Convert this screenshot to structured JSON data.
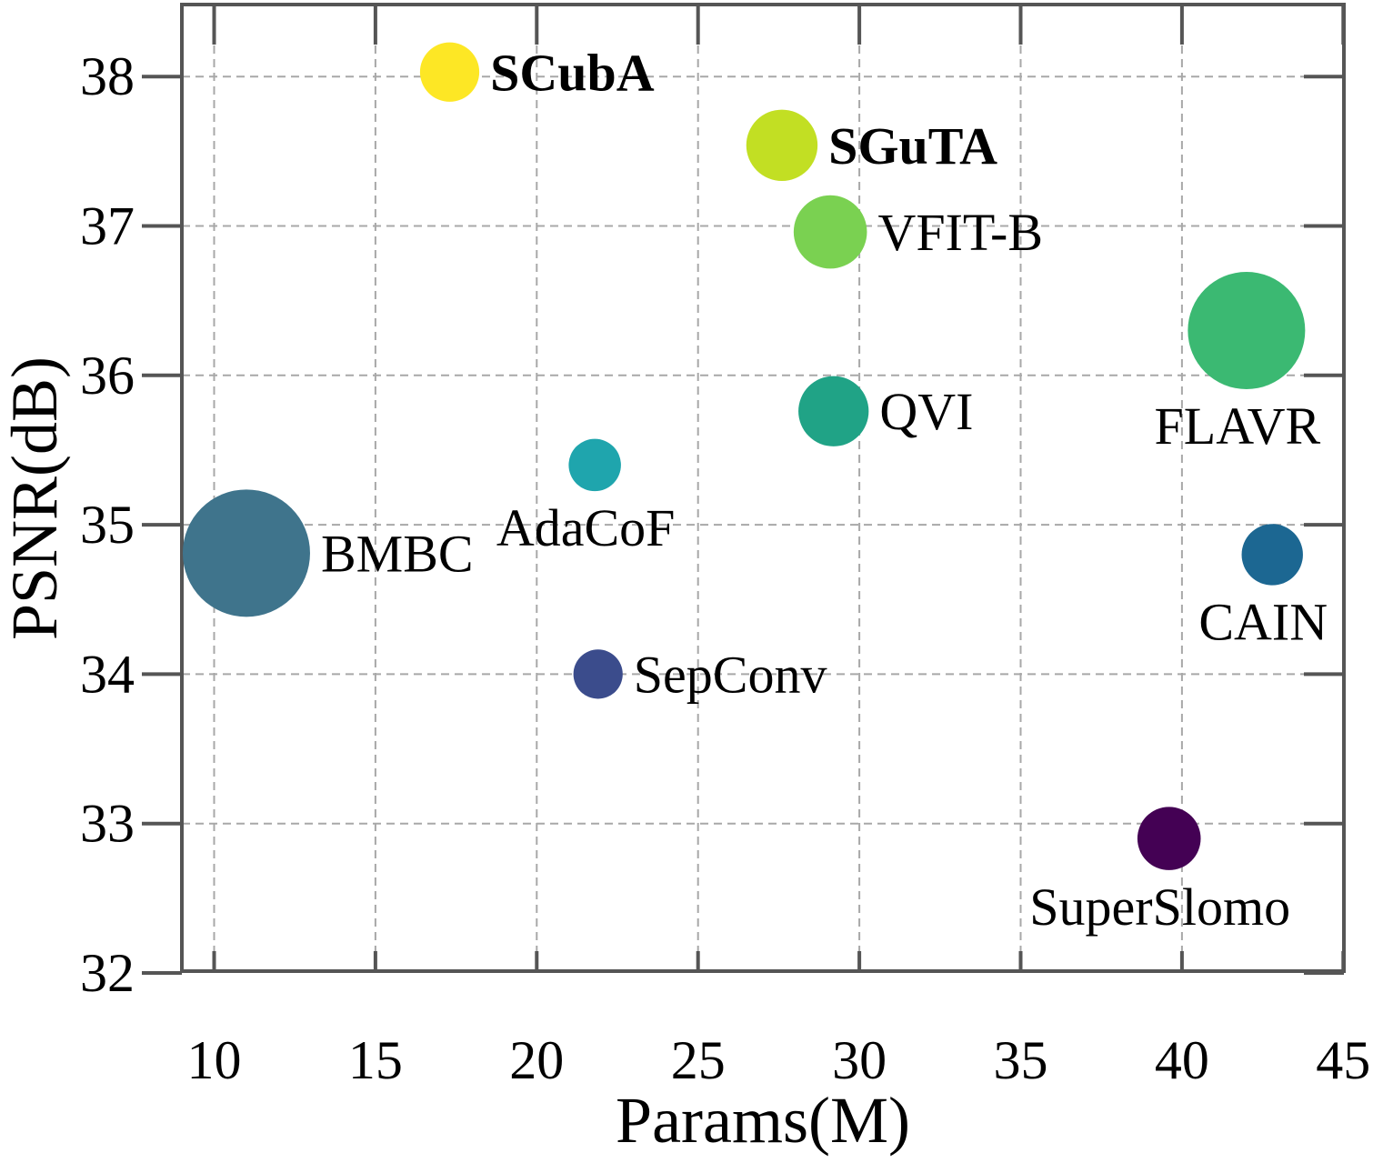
{
  "chart_data": {
    "type": "scatter",
    "title": "",
    "xlabel": "Params(M)",
    "ylabel": "PSNR(dB)",
    "xlim": [
      9,
      45
    ],
    "ylim": [
      32,
      38.5
    ],
    "xticks": [
      10,
      15,
      20,
      25,
      30,
      35,
      40,
      45
    ],
    "yticks": [
      32,
      33,
      34,
      35,
      36,
      37,
      38
    ],
    "grid": true,
    "marker_size_meaning": "relative bubble size (unlabeled)",
    "points": [
      {
        "label": "SCubA",
        "x": 17.3,
        "y": 38.03,
        "size": 0.32,
        "color": "#fde725",
        "bold": true,
        "label_position": "right"
      },
      {
        "label": "SGuTA",
        "x": 27.6,
        "y": 37.54,
        "size": 0.44,
        "color": "#c2df23",
        "bold": true,
        "label_position": "right"
      },
      {
        "label": "VFIT-B",
        "x": 29.1,
        "y": 36.96,
        "size": 0.46,
        "color": "#7ad151",
        "bold": false,
        "label_position": "right"
      },
      {
        "label": "FLAVR",
        "x": 42.0,
        "y": 36.3,
        "size": 0.9,
        "color": "#3bb972",
        "bold": false,
        "label_position": "below"
      },
      {
        "label": "QVI",
        "x": 29.2,
        "y": 35.76,
        "size": 0.43,
        "color": "#20a386",
        "bold": false,
        "label_position": "right"
      },
      {
        "label": "AdaCoF",
        "x": 21.8,
        "y": 35.4,
        "size": 0.25,
        "color": "#1fa5ad",
        "bold": false,
        "label_position": "below"
      },
      {
        "label": "BMBC",
        "x": 11.0,
        "y": 34.81,
        "size": 1.0,
        "color": "#3f748c",
        "bold": false,
        "label_position": "right"
      },
      {
        "label": "CAIN",
        "x": 42.8,
        "y": 34.8,
        "size": 0.34,
        "color": "#1c6792",
        "bold": false,
        "label_position": "below"
      },
      {
        "label": "SepConv",
        "x": 21.9,
        "y": 34.0,
        "size": 0.22,
        "color": "#3b4c8c",
        "bold": false,
        "label_position": "right"
      },
      {
        "label": "SuperSlomo",
        "x": 39.6,
        "y": 32.9,
        "size": 0.36,
        "color": "#440154",
        "bold": false,
        "label_position": "below"
      }
    ]
  }
}
